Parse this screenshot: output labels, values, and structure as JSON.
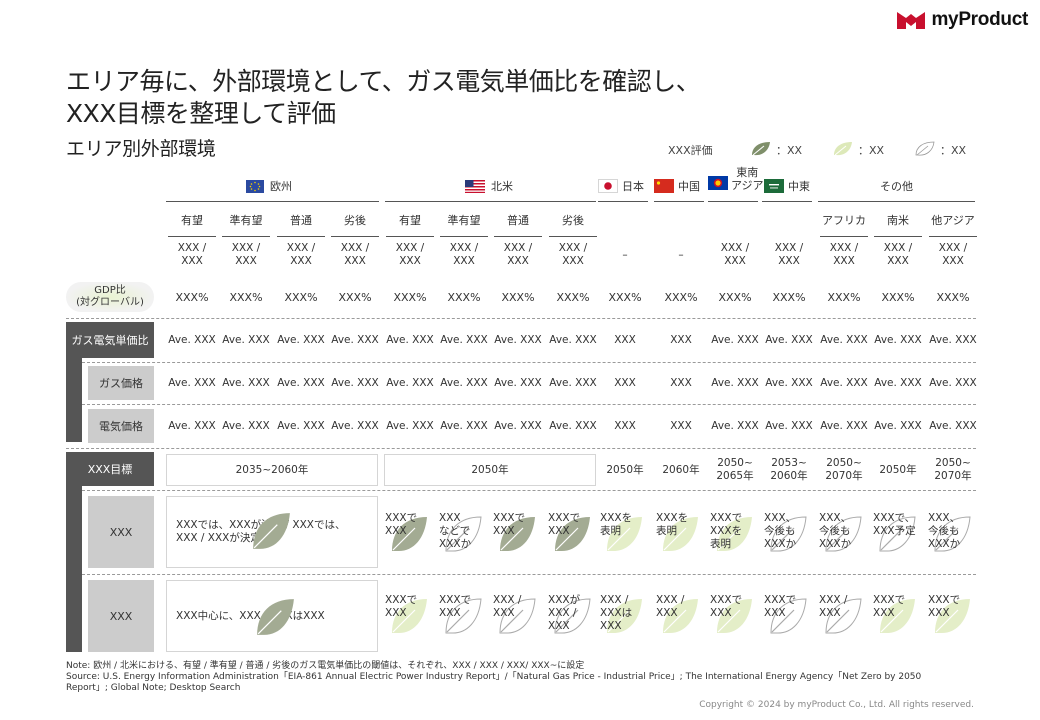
{
  "brand": {
    "name": "myProduct",
    "logo_color": "#c8102e"
  },
  "title_line1": "エリア毎に、外部環境として、ガス電気単価比を確認し、",
  "title_line2": "XXX目標を整理して評価",
  "subtitle": "エリア別外部環境",
  "legend": {
    "label": "XXX評価",
    "items": [
      {
        "level": "high",
        "text": "：XX"
      },
      {
        "level": "mid",
        "text": "：XX"
      },
      {
        "level": "low",
        "text": "：XX"
      }
    ]
  },
  "regions": {
    "europe": "欧州",
    "north_america": "北米",
    "japan": "日本",
    "china": "中国",
    "southeast_asia_1": "東南",
    "southeast_asia_2": "アジア",
    "middle_east": "中東",
    "others": "その他"
  },
  "subheaders": [
    "有望",
    "準有望",
    "普通",
    "劣後",
    "有望",
    "準有望",
    "普通",
    "劣後",
    "",
    "",
    "",
    "",
    "アフリカ",
    "南米",
    "他アジア"
  ],
  "country_rows": [
    [
      "XXX /",
      "XXX /",
      "XXX /",
      "XXX /",
      "XXX /",
      "XXX /",
      "XXX /",
      "XXX /",
      "–",
      "–",
      "XXX /",
      "XXX /",
      "XXX /",
      "XXX /",
      "XXX /"
    ],
    [
      "XXX",
      "XXX",
      "XXX",
      "XXX",
      "XXX",
      "XXX",
      "XXX",
      "XXX",
      "",
      "",
      "XXX",
      "XXX",
      "XXX",
      "XXX",
      "XXX"
    ]
  ],
  "gdp": {
    "label1": "GDP比",
    "label2": "(対グローバル)",
    "values": [
      "XXX%",
      "XXX%",
      "XXX%",
      "XXX%",
      "XXX%",
      "XXX%",
      "XXX%",
      "XXX%",
      "XXX%",
      "XXX%",
      "XXX%",
      "XXX%",
      "XXX%",
      "XXX%",
      "XXX%"
    ]
  },
  "price_section": {
    "header": "ガス電気単価比",
    "header_values": [
      "Ave. XXX",
      "Ave. XXX",
      "Ave. XXX",
      "Ave. XXX",
      "Ave. XXX",
      "Ave. XXX",
      "Ave. XXX",
      "Ave. XXX",
      "XXX",
      "XXX",
      "Ave. XXX",
      "Ave. XXX",
      "Ave. XXX",
      "Ave. XXX",
      "Ave. XXX"
    ],
    "gas_label": "ガス価格",
    "gas_values": [
      "Ave. XXX",
      "Ave. XXX",
      "Ave. XXX",
      "Ave. XXX",
      "Ave. XXX",
      "Ave. XXX",
      "Ave. XXX",
      "Ave. XXX",
      "XXX",
      "XXX",
      "Ave. XXX",
      "Ave. XXX",
      "Ave. XXX",
      "Ave. XXX",
      "Ave. XXX"
    ],
    "elec_label": "電気価格",
    "elec_values": [
      "Ave. XXX",
      "Ave. XXX",
      "Ave. XXX",
      "Ave. XXX",
      "Ave. XXX",
      "Ave. XXX",
      "Ave. XXX",
      "Ave. XXX",
      "XXX",
      "XXX",
      "Ave. XXX",
      "Ave. XXX",
      "Ave. XXX",
      "Ave. XXX",
      "Ave. XXX"
    ]
  },
  "target_section": {
    "header": "XXX目標",
    "europe_target": "2035~2060年",
    "na_target": "2050年",
    "targets": [
      [
        "2050年"
      ],
      [
        "2060年"
      ],
      [
        "2050~",
        "2065年"
      ],
      [
        "2053~",
        "2060年"
      ],
      [
        "2050~",
        "2070年"
      ],
      [
        "2050年"
      ],
      [
        "2050~",
        "2070年"
      ]
    ],
    "row1_label": "XXX",
    "row1_europe_1": "XXXでは、XXXが決定 / XXXでは、",
    "row1_europe_2": "XXX / XXXが決定",
    "row1_cells": [
      [
        "XXXで",
        "XXX"
      ],
      [
        "XXX",
        "などで",
        "XXXか"
      ],
      [
        "XXXで",
        "XXX"
      ],
      [
        "XXXで",
        "XXX"
      ],
      [
        "XXXを",
        "表明"
      ],
      [
        "XXXを",
        "表明"
      ],
      [
        "XXXで",
        "XXXを",
        "表明"
      ],
      [
        "XXX、",
        "今後も",
        "XXXか"
      ],
      [
        "XXX、",
        "今後も",
        "XXXか"
      ],
      [
        "XXXで、",
        "XXX予定"
      ],
      [
        "XXX、",
        "今後も",
        "XXXか"
      ]
    ],
    "row2_label": "XXX",
    "row2_europe": "XXX中心に、XXX / XXXはXXX",
    "row2_cells": [
      [
        "XXXで",
        "XXX"
      ],
      [
        "XXXで",
        "XXX"
      ],
      [
        "XXX /",
        "XXX"
      ],
      [
        "XXXが",
        "XXX /",
        "XXX"
      ],
      [
        "XXX /",
        "XXXは",
        "XXX"
      ],
      [
        "XXX /",
        "XXX"
      ],
      [
        "XXXで",
        "XXX"
      ],
      [
        "XXXで",
        "XXX"
      ],
      [
        "XXX /",
        "XXX"
      ],
      [
        "XXXで",
        "XXX"
      ],
      [
        "XXXで",
        "XXX"
      ]
    ]
  },
  "note": "Note: 欧州 / 北米における、有望 / 準有望 / 普通 / 劣後のガス電気単価比の閾値は、それぞれ、XXX / XXX / XXX/ XXX~に設定",
  "source1": "Source: U.S. Energy Information Administration「EIA-861 Annual Electric Power Industry Report」/「Natural Gas Price - Industrial Price」; The International Energy Agency「Net Zero by 2050",
  "source2": "Report」; Global Note; Desktop Search",
  "copyright": "Copyright © 2024 by myProduct Co., Ltd.  All rights reserved."
}
